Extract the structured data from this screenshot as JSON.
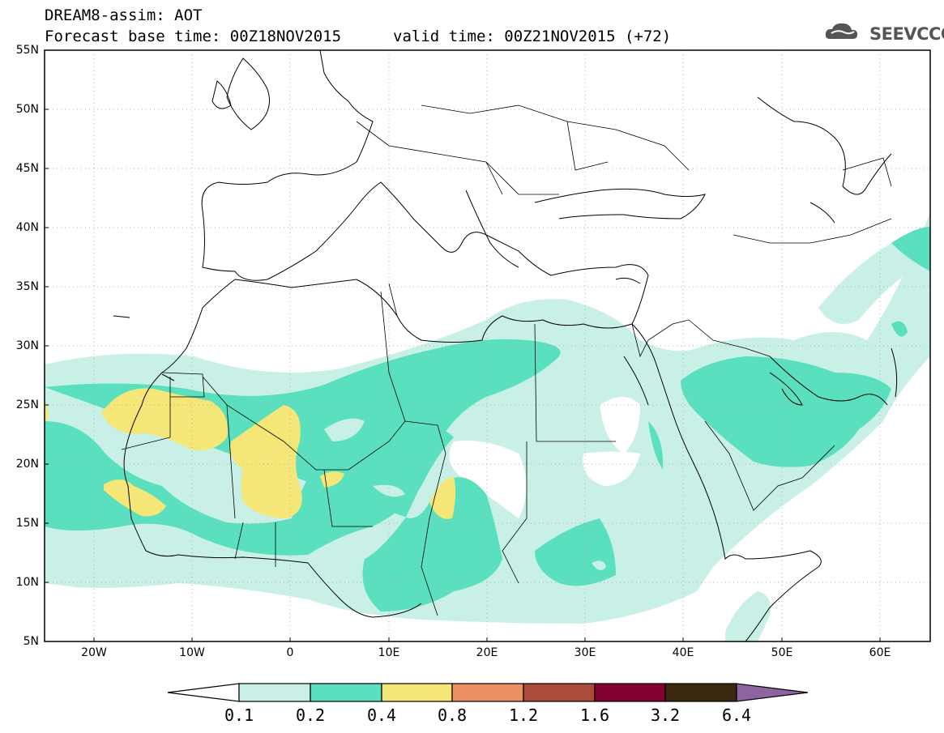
{
  "header": {
    "line1": "DREAM8-assim: AOT",
    "line2": "Forecast base time: 00Z18NOV2015",
    "line3": "valid time: 00Z21NOV2015 (+72)"
  },
  "logo": {
    "text": "SEEVCCC",
    "icon": "cloud-logo-icon",
    "color": "#555555"
  },
  "map": {
    "lon_range": [
      -25,
      65
    ],
    "lat_range": [
      5,
      55
    ],
    "lat_labels": [
      "55N",
      "50N",
      "45N",
      "40N",
      "35N",
      "30N",
      "25N",
      "20N",
      "15N",
      "10N",
      "5N"
    ],
    "lon_labels": [
      "20W",
      "10W",
      "0",
      "10E",
      "20E",
      "30E",
      "40E",
      "50E",
      "60E"
    ],
    "gridlines": "dotted"
  },
  "colorbar": {
    "colors": [
      "#ffffff",
      "#c8f0e6",
      "#5ae0be",
      "#f5e678",
      "#eb9164",
      "#aa4b3c",
      "#820032",
      "#3c280f",
      "#8c64a0"
    ],
    "labels": [
      "0.1",
      "0.2",
      "0.4",
      "0.8",
      "1.2",
      "1.6",
      "3.2",
      "6.4"
    ]
  }
}
